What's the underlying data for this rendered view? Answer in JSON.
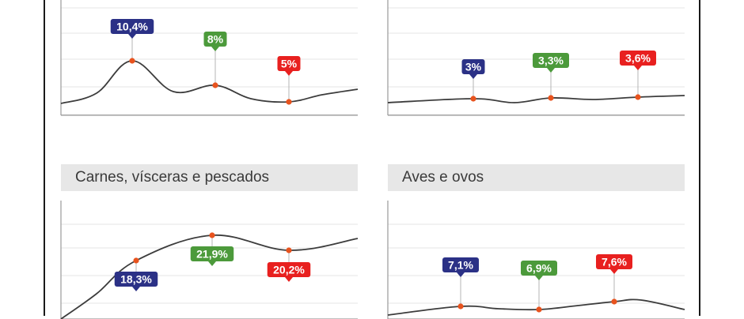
{
  "colors": {
    "line": "#3c3c3c",
    "grid": "#e4e4e4",
    "axis": "#9a9a9a",
    "point": "#e8531e",
    "leader": "#b5b5b5",
    "badge_1": "#2b3186",
    "badge_2": "#4c9a3b",
    "badge_3": "#e8201f",
    "title_bg": "#e7e7e7"
  },
  "chart_data": [
    {
      "type": "line",
      "title": "",
      "smooth": true,
      "ylim": [
        0,
        30
      ],
      "points": [
        {
          "value": 10.4,
          "label": "10,4%",
          "badge": "badge_1"
        },
        {
          "value": 8,
          "label": "8%",
          "badge": "badge_2"
        },
        {
          "value": 5,
          "label": "5%",
          "badge": "badge_3"
        }
      ]
    },
    {
      "type": "line",
      "title": "",
      "smooth": true,
      "ylim": [
        0,
        30
      ],
      "points": [
        {
          "value": 3,
          "label": "3%",
          "badge": "badge_1"
        },
        {
          "value": 3.3,
          "label": "3,3%",
          "badge": "badge_2"
        },
        {
          "value": 3.6,
          "label": "3,6%",
          "badge": "badge_3"
        }
      ]
    },
    {
      "type": "line",
      "title": "Carnes, vísceras e pescados",
      "smooth": true,
      "ylim": [
        0,
        30
      ],
      "points": [
        {
          "value": 18.3,
          "label": "18,3%",
          "badge": "badge_1"
        },
        {
          "value": 21.9,
          "label": "21,9%",
          "badge": "badge_2"
        },
        {
          "value": 20.2,
          "label": "20,2%",
          "badge": "badge_3"
        }
      ]
    },
    {
      "type": "line",
      "title": "Aves e ovos",
      "smooth": true,
      "ylim": [
        0,
        30
      ],
      "points": [
        {
          "value": 7.1,
          "label": "7,1%",
          "badge": "badge_1"
        },
        {
          "value": 6.9,
          "label": "6,9%",
          "badge": "badge_2"
        },
        {
          "value": 7.6,
          "label": "7,6%",
          "badge": "badge_3"
        }
      ]
    }
  ]
}
